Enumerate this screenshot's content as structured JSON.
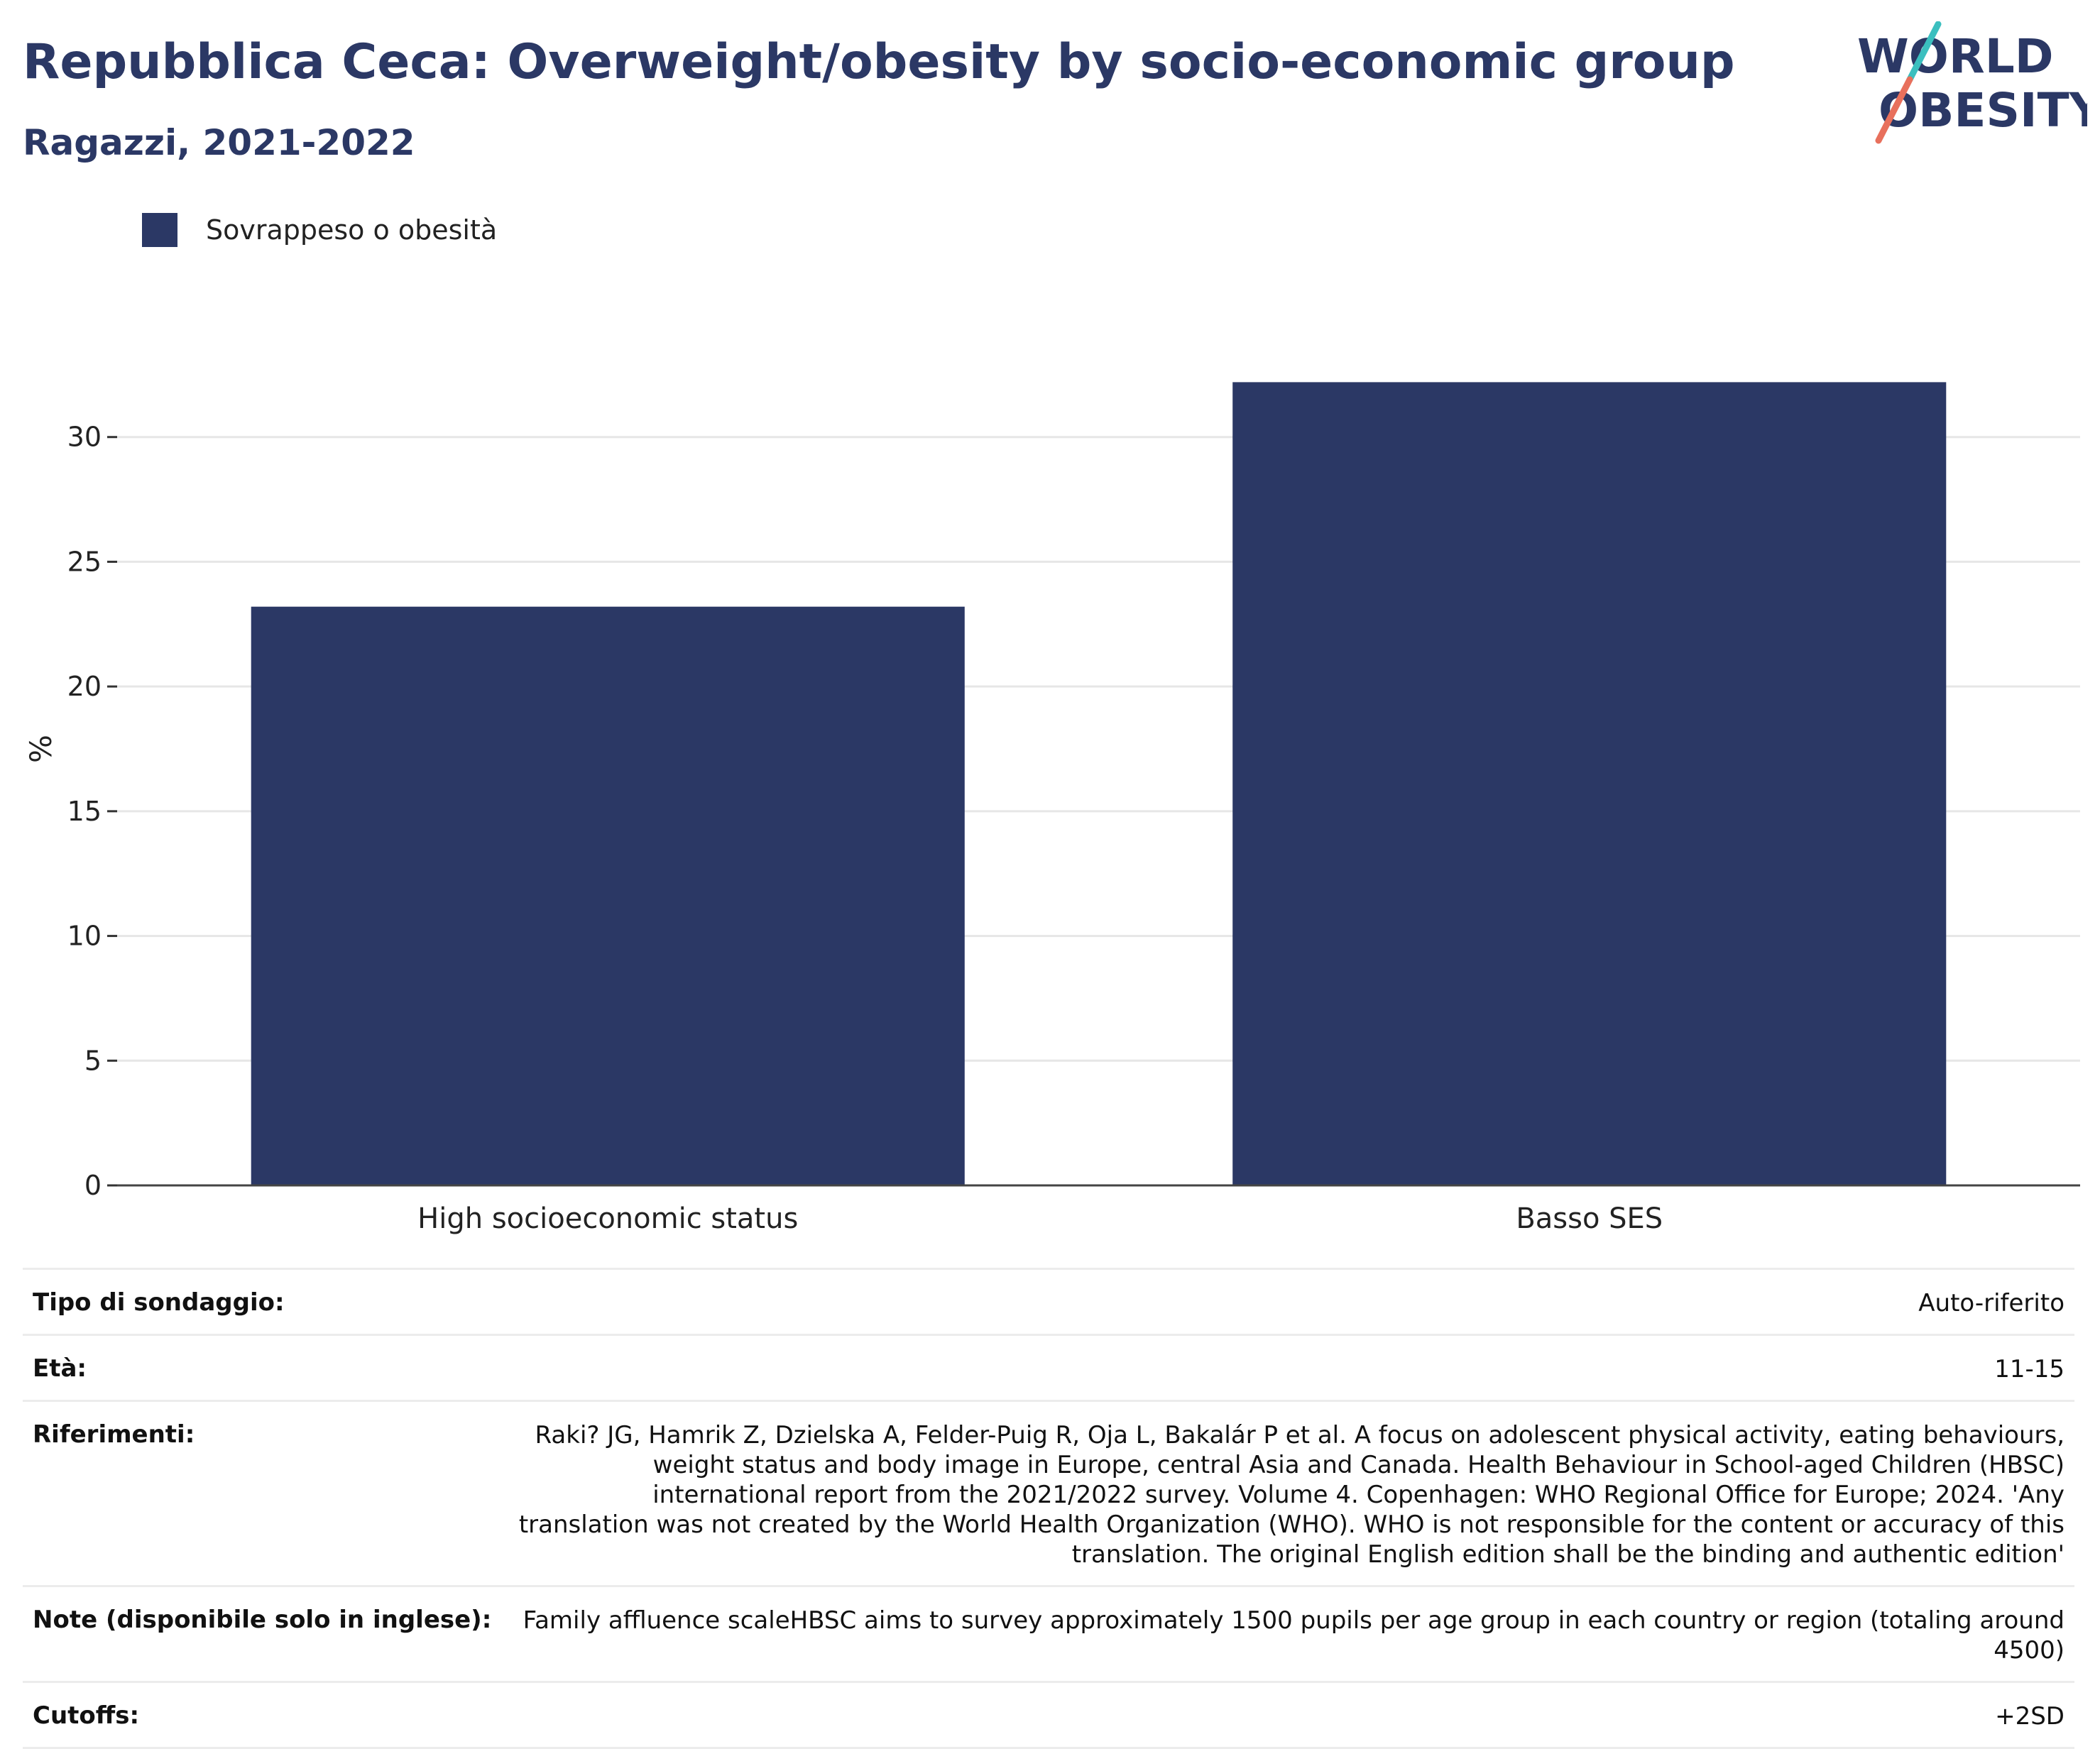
{
  "header": {
    "title": "Repubblica Ceca: Overweight/obesity by socio-economic group",
    "subtitle": "Ragazzi, 2021-2022"
  },
  "logo": {
    "line1": "WORLD",
    "line2": "OBESITY"
  },
  "colors": {
    "bar": "#2b3865",
    "title": "#2b3865",
    "logo_slash_top": "#3bbfbf",
    "logo_slash_bottom": "#e8705c"
  },
  "chart_data": {
    "type": "bar",
    "categories": [
      "High socioeconomic status",
      "Basso SES"
    ],
    "series": [
      {
        "name": "Sovrappeso o obesità",
        "values": [
          23.2,
          32.2
        ]
      }
    ],
    "ylabel": "%",
    "xlabel": "",
    "ylim": [
      0,
      35
    ],
    "yticks": [
      0,
      5,
      10,
      15,
      20,
      25,
      30
    ],
    "grid": true,
    "legend_position": "top-left"
  },
  "info": [
    {
      "label": "Tipo di sondaggio:",
      "value": "Auto-riferito"
    },
    {
      "label": "Età:",
      "value": "11-15"
    },
    {
      "label": "Riferimenti:",
      "value": "Raki? JG, Hamrik Z, Dzielska A, Felder-Puig R, Oja L, Bakalár P et al. A focus on adolescent physical activity, eating behaviours, weight status and body image in Europe, central Asia and Canada. Health Behaviour in School-aged Children (HBSC) international report from the 2021/2022 survey. Volume 4. Copenhagen: WHO Regional Office for Europe; 2024. 'Any translation was not created by the World Health Organization (WHO). WHO is not responsible for the content or accuracy of this translation. The original English edition shall be the binding and authentic edition'"
    },
    {
      "label": "Note (disponibile solo in inglese):",
      "value": "Family affluence scaleHBSC aims to survey approximately 1500 pupils per age group in each country or region (totaling around 4500)"
    },
    {
      "label": "Cutoffs:",
      "value": "+2SD"
    }
  ]
}
